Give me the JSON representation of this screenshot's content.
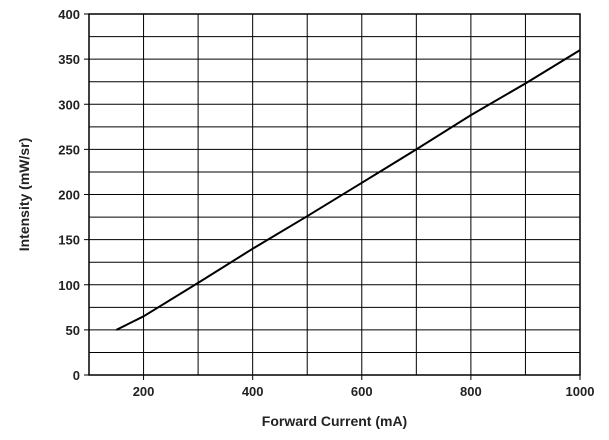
{
  "chart_data": {
    "type": "line",
    "title": "",
    "xlabel": "Forward Current (mA)",
    "ylabel": "Intensity (mW/sr)",
    "xlim": [
      100,
      1000
    ],
    "ylim": [
      0,
      400
    ],
    "x_ticks": [
      {
        "value": 200,
        "label": "200"
      },
      {
        "value": 400,
        "label": "400"
      },
      {
        "value": 600,
        "label": "600"
      },
      {
        "value": 800,
        "label": "800"
      },
      {
        "value": 1000,
        "label": "1000"
      }
    ],
    "y_ticks": [
      {
        "value": 0,
        "label": "0"
      },
      {
        "value": 50,
        "label": "50"
      },
      {
        "value": 100,
        "label": "100"
      },
      {
        "value": 150,
        "label": "150"
      },
      {
        "value": 200,
        "label": "200"
      },
      {
        "value": 250,
        "label": "250"
      },
      {
        "value": 300,
        "label": "300"
      },
      {
        "value": 350,
        "label": "350"
      },
      {
        "value": 400,
        "label": "400"
      }
    ],
    "x_gridlines": [
      200,
      300,
      400,
      500,
      600,
      700,
      800,
      900
    ],
    "y_gridlines": [
      25,
      50,
      75,
      100,
      125,
      150,
      175,
      200,
      225,
      250,
      275,
      300,
      325,
      350,
      375
    ],
    "grid": true,
    "legend": "none",
    "series": [
      {
        "color": "#000000",
        "points": [
          {
            "x": 150,
            "y": 50
          },
          {
            "x": 200,
            "y": 65
          },
          {
            "x": 300,
            "y": 102
          },
          {
            "x": 400,
            "y": 140
          },
          {
            "x": 500,
            "y": 176
          },
          {
            "x": 600,
            "y": 213
          },
          {
            "x": 700,
            "y": 250
          },
          {
            "x": 800,
            "y": 288
          },
          {
            "x": 900,
            "y": 323
          },
          {
            "x": 1000,
            "y": 360
          }
        ]
      }
    ],
    "colors": {
      "axis": "#000000",
      "grid": "#000000",
      "text": "#222222"
    }
  }
}
